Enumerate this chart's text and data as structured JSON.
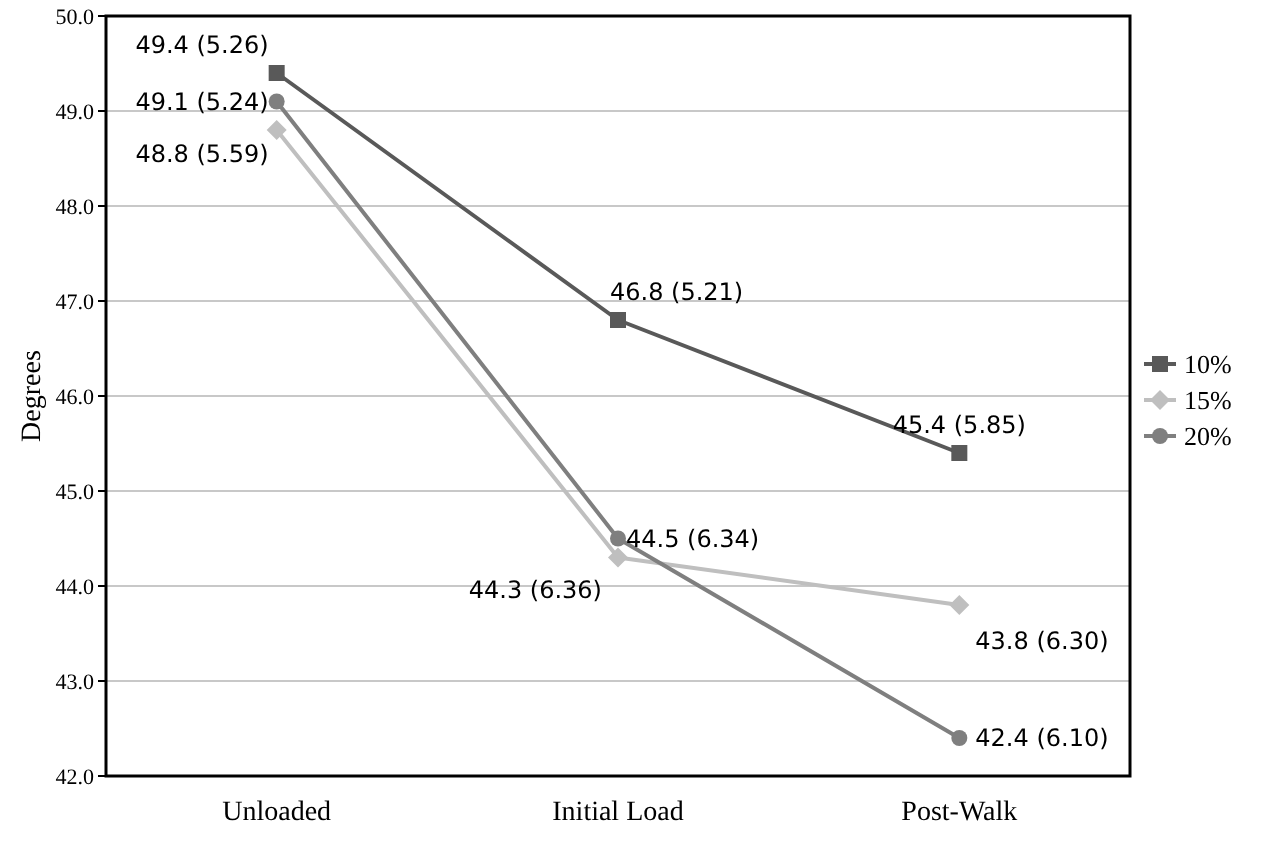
{
  "chart_data": {
    "type": "line",
    "ylabel": "Degrees",
    "categories": [
      "Unloaded",
      "Initial Load",
      "Post-Walk"
    ],
    "ylim": [
      42,
      50
    ],
    "yticks": [
      {
        "value": 42,
        "label": "42.0"
      },
      {
        "value": 43,
        "label": "43.0"
      },
      {
        "value": 44,
        "label": "44.0"
      },
      {
        "value": 45,
        "label": "45.0"
      },
      {
        "value": 46,
        "label": "46.0"
      },
      {
        "value": 47,
        "label": "47.0"
      },
      {
        "value": 48,
        "label": "48.0"
      },
      {
        "value": 49,
        "label": "49.0"
      },
      {
        "value": 50,
        "label": "50.0"
      }
    ],
    "grid": "y",
    "legend": "right",
    "series": [
      {
        "name": "10%",
        "color": "#595959",
        "marker": "square",
        "values": [
          49.4,
          46.8,
          45.4
        ],
        "value_labels": [
          "49.4 (5.26)",
          "46.8 (5.21)",
          "45.4 (5.85)"
        ]
      },
      {
        "name": "15%",
        "color": "#bfbfbf",
        "marker": "diamond",
        "values": [
          48.8,
          44.3,
          43.8
        ],
        "value_labels": [
          "48.8 (5.59)",
          "44.3 (6.36)",
          "43.8 (6.30)"
        ]
      },
      {
        "name": "20%",
        "color": "#7f7f7f",
        "marker": "circle",
        "values": [
          49.1,
          44.5,
          42.4
        ],
        "value_labels": [
          "49.1 (5.24)",
          "44.5 (6.34)",
          "42.4 (6.10)"
        ]
      }
    ]
  }
}
